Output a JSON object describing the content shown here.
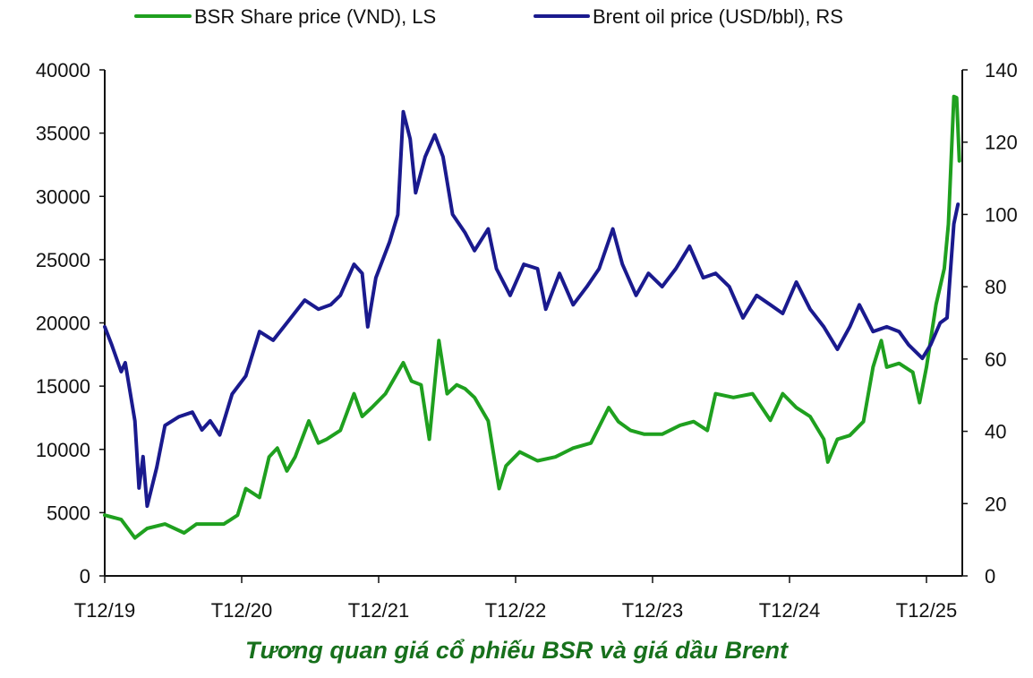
{
  "chart_data": {
    "type": "line",
    "title": "Tương quan giá cổ phiếu BSR và giá dầu Brent",
    "x_unit": "years since T12/19",
    "x_ticks": [
      {
        "value": 0,
        "label": "T12/19"
      },
      {
        "value": 1,
        "label": "T12/20"
      },
      {
        "value": 2,
        "label": "T12/21"
      },
      {
        "value": 3,
        "label": "T12/22"
      },
      {
        "value": 4,
        "label": "T12/23"
      },
      {
        "value": 5,
        "label": "T12/24"
      },
      {
        "value": 6,
        "label": "T12/25"
      }
    ],
    "xlim": [
      0,
      6.26
    ],
    "y_left": {
      "ylim": [
        0,
        40000
      ],
      "ticks": [
        "0",
        "5000",
        "10000",
        "15000",
        "20000",
        "25000",
        "30000",
        "35000",
        "40000"
      ]
    },
    "y_right": {
      "ylim": [
        0,
        140
      ],
      "ticks": [
        "0",
        "20",
        "40",
        "60",
        "80",
        "100",
        "120",
        "140"
      ]
    },
    "grid": false,
    "legend_position": "top",
    "series": [
      {
        "name": "BSR Share price (VND), LS",
        "axis": "left",
        "color": "#1fa01f",
        "points": [
          [
            0,
            4800
          ],
          [
            0.12,
            4450
          ],
          [
            0.22,
            3000
          ],
          [
            0.31,
            3750
          ],
          [
            0.44,
            4100
          ],
          [
            0.58,
            3400
          ],
          [
            0.67,
            4100
          ],
          [
            0.87,
            4100
          ],
          [
            0.97,
            4800
          ],
          [
            1.03,
            6900
          ],
          [
            1.13,
            6200
          ],
          [
            1.2,
            9400
          ],
          [
            1.26,
            10100
          ],
          [
            1.33,
            8300
          ],
          [
            1.39,
            9400
          ],
          [
            1.49,
            12250
          ],
          [
            1.56,
            10500
          ],
          [
            1.62,
            10800
          ],
          [
            1.72,
            11500
          ],
          [
            1.82,
            14400
          ],
          [
            1.88,
            12600
          ],
          [
            1.95,
            13300
          ],
          [
            2.05,
            14400
          ],
          [
            2.18,
            16850
          ],
          [
            2.24,
            15400
          ],
          [
            2.31,
            15100
          ],
          [
            2.37,
            10800
          ],
          [
            2.44,
            18600
          ],
          [
            2.5,
            14400
          ],
          [
            2.57,
            15100
          ],
          [
            2.63,
            14800
          ],
          [
            2.7,
            14100
          ],
          [
            2.8,
            12250
          ],
          [
            2.88,
            6900
          ],
          [
            2.93,
            8700
          ],
          [
            3.03,
            9800
          ],
          [
            3.16,
            9100
          ],
          [
            3.29,
            9400
          ],
          [
            3.42,
            10100
          ],
          [
            3.55,
            10500
          ],
          [
            3.68,
            13300
          ],
          [
            3.75,
            12200
          ],
          [
            3.84,
            11500
          ],
          [
            3.94,
            11200
          ],
          [
            4.07,
            11200
          ],
          [
            4.2,
            11900
          ],
          [
            4.3,
            12200
          ],
          [
            4.4,
            11500
          ],
          [
            4.46,
            14400
          ],
          [
            4.59,
            14100
          ],
          [
            4.73,
            14400
          ],
          [
            4.86,
            12300
          ],
          [
            4.95,
            14400
          ],
          [
            5.05,
            13300
          ],
          [
            5.15,
            12600
          ],
          [
            5.25,
            10800
          ],
          [
            5.28,
            9000
          ],
          [
            5.35,
            10800
          ],
          [
            5.44,
            11100
          ],
          [
            5.54,
            12200
          ],
          [
            5.61,
            16500
          ],
          [
            5.67,
            18600
          ],
          [
            5.71,
            16500
          ],
          [
            5.8,
            16800
          ],
          [
            5.9,
            16100
          ],
          [
            5.95,
            13700
          ],
          [
            6.0,
            16500
          ],
          [
            6.07,
            21450
          ],
          [
            6.13,
            24300
          ],
          [
            6.16,
            27800
          ],
          [
            6.2,
            37900
          ],
          [
            6.22,
            37800
          ],
          [
            6.24,
            32800
          ]
        ]
      },
      {
        "name": "Brent oil price (USD/bbl), RS",
        "axis": "right",
        "color": "#1a1a8e",
        "points": [
          [
            0,
            68.9
          ],
          [
            0.05,
            64
          ],
          [
            0.12,
            56.5
          ],
          [
            0.15,
            59
          ],
          [
            0.22,
            42.9
          ],
          [
            0.25,
            24.3
          ],
          [
            0.28,
            33
          ],
          [
            0.31,
            19.3
          ],
          [
            0.38,
            30
          ],
          [
            0.44,
            41.6
          ],
          [
            0.54,
            44
          ],
          [
            0.64,
            45.3
          ],
          [
            0.71,
            40.4
          ],
          [
            0.77,
            42.9
          ],
          [
            0.84,
            39
          ],
          [
            0.93,
            50.3
          ],
          [
            1.03,
            55.3
          ],
          [
            1.13,
            67.6
          ],
          [
            1.23,
            65.2
          ],
          [
            1.33,
            70
          ],
          [
            1.46,
            76.3
          ],
          [
            1.56,
            73.8
          ],
          [
            1.65,
            75
          ],
          [
            1.72,
            77.6
          ],
          [
            1.82,
            86.2
          ],
          [
            1.88,
            83.7
          ],
          [
            1.92,
            68.9
          ],
          [
            1.98,
            82.5
          ],
          [
            2.08,
            92.4
          ],
          [
            2.14,
            99.9
          ],
          [
            2.18,
            128.4
          ],
          [
            2.23,
            120.9
          ],
          [
            2.27,
            106
          ],
          [
            2.34,
            116
          ],
          [
            2.41,
            122
          ],
          [
            2.47,
            116
          ],
          [
            2.54,
            100
          ],
          [
            2.63,
            95
          ],
          [
            2.7,
            90
          ],
          [
            2.8,
            96
          ],
          [
            2.86,
            85
          ],
          [
            2.96,
            77.6
          ],
          [
            3.06,
            86.2
          ],
          [
            3.16,
            85
          ],
          [
            3.22,
            73.8
          ],
          [
            3.32,
            83.7
          ],
          [
            3.42,
            75
          ],
          [
            3.52,
            80
          ],
          [
            3.61,
            85
          ],
          [
            3.71,
            96
          ],
          [
            3.78,
            86.2
          ],
          [
            3.88,
            77.6
          ],
          [
            3.97,
            83.7
          ],
          [
            4.07,
            80
          ],
          [
            4.17,
            85
          ],
          [
            4.27,
            91.2
          ],
          [
            4.37,
            82.5
          ],
          [
            4.46,
            83.7
          ],
          [
            4.56,
            80
          ],
          [
            4.66,
            71.4
          ],
          [
            4.76,
            77.6
          ],
          [
            4.86,
            75
          ],
          [
            4.95,
            72.6
          ],
          [
            5.05,
            81.3
          ],
          [
            5.15,
            73.8
          ],
          [
            5.25,
            68.9
          ],
          [
            5.35,
            62.7
          ],
          [
            5.44,
            68.9
          ],
          [
            5.51,
            75
          ],
          [
            5.61,
            67.6
          ],
          [
            5.71,
            68.9
          ],
          [
            5.8,
            67.6
          ],
          [
            5.87,
            63.9
          ],
          [
            5.97,
            60.2
          ],
          [
            6.03,
            63.9
          ],
          [
            6.1,
            70
          ],
          [
            6.15,
            71.4
          ],
          [
            6.2,
            97.4
          ],
          [
            6.23,
            102.8
          ]
        ]
      }
    ]
  }
}
